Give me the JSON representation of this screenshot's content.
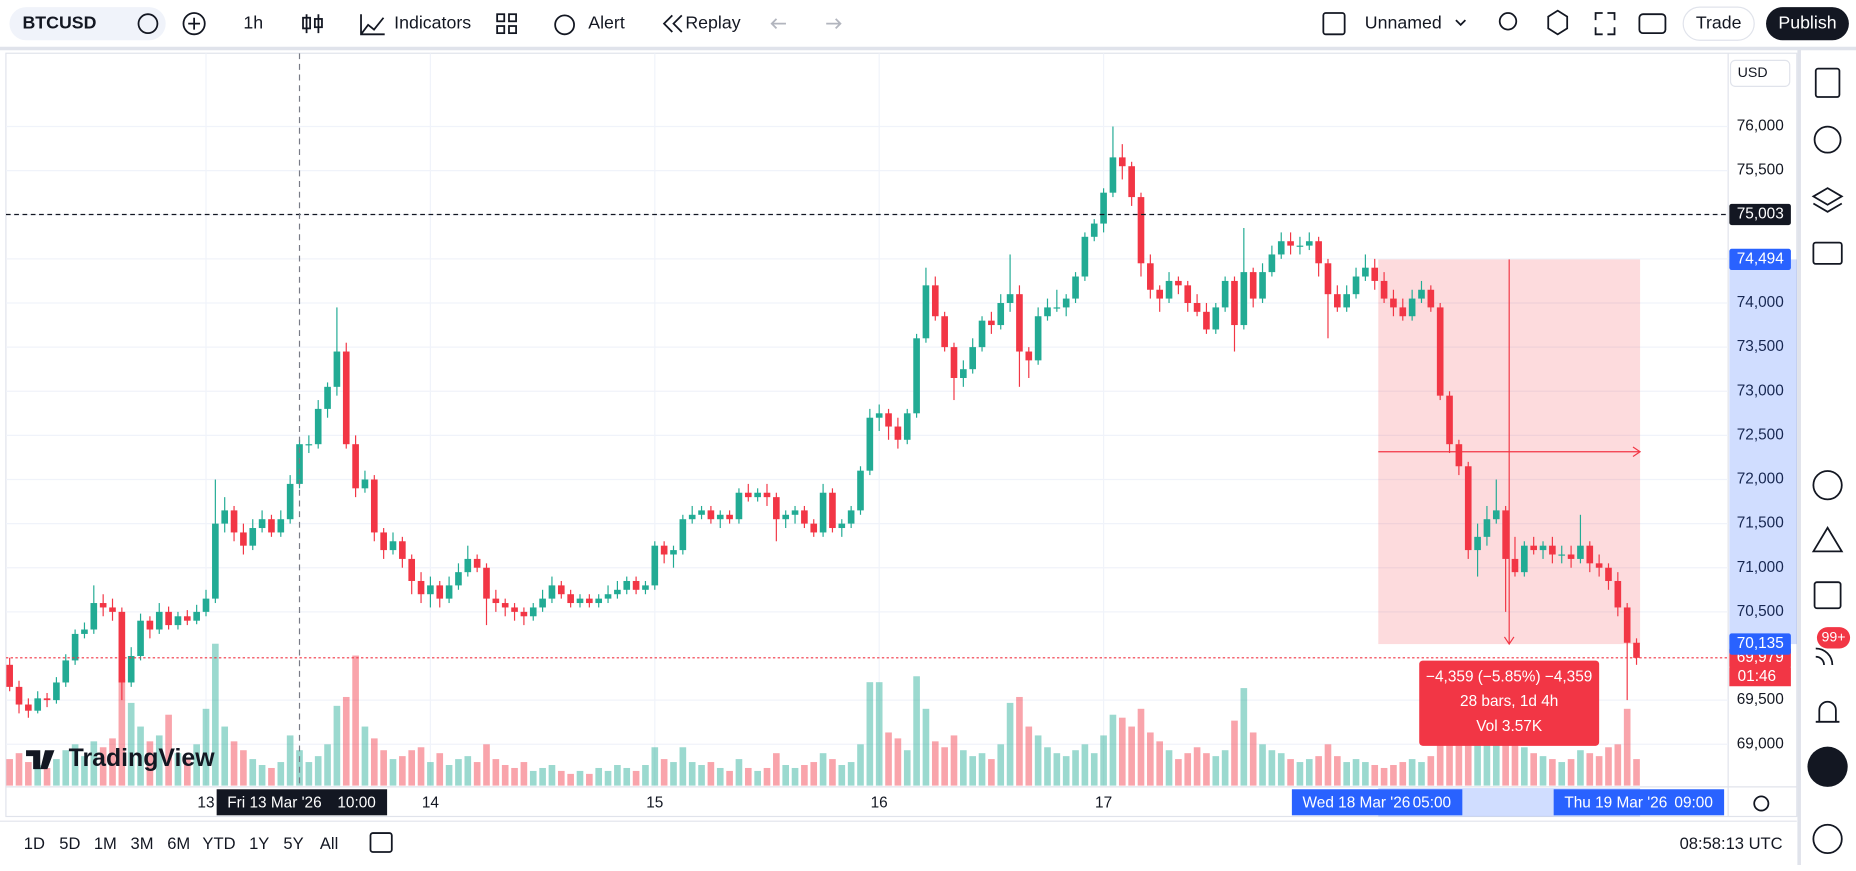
{
  "toolbar": {
    "symbol": "BTCUSD",
    "interval": "1h",
    "indicators": "Indicators",
    "alert": "Alert",
    "replay": "Replay",
    "layout": "Unnamed",
    "trade": "Trade",
    "publish": "Publish"
  },
  "chart_data": {
    "type": "candlestick",
    "candles": [
      [
        69900,
        69980,
        69600,
        69650,
        90
      ],
      [
        69650,
        69720,
        69350,
        69450,
        110
      ],
      [
        69450,
        69520,
        69300,
        69380,
        80
      ],
      [
        69380,
        69600,
        69350,
        69520,
        70
      ],
      [
        69520,
        69580,
        69420,
        69500,
        60
      ],
      [
        69500,
        69760,
        69460,
        69700,
        90
      ],
      [
        69700,
        70020,
        69650,
        69950,
        120
      ],
      [
        69950,
        70300,
        69900,
        70250,
        140
      ],
      [
        70250,
        70380,
        70200,
        70300,
        100
      ],
      [
        70300,
        70800,
        70250,
        70600,
        150
      ],
      [
        70600,
        70700,
        70450,
        70550,
        130
      ],
      [
        70550,
        70650,
        70400,
        70500,
        160
      ],
      [
        70500,
        70550,
        69500,
        69700,
        360
      ],
      [
        69700,
        70100,
        69650,
        70000,
        280
      ],
      [
        70000,
        70480,
        69950,
        70400,
        200
      ],
      [
        70400,
        70450,
        70200,
        70300,
        150
      ],
      [
        70300,
        70600,
        70250,
        70500,
        170
      ],
      [
        70500,
        70560,
        70300,
        70350,
        240
      ],
      [
        70350,
        70500,
        70300,
        70450,
        110
      ],
      [
        70450,
        70520,
        70350,
        70400,
        90
      ],
      [
        70400,
        70580,
        70360,
        70500,
        140
      ],
      [
        70500,
        70750,
        70450,
        70650,
        260
      ],
      [
        70650,
        72000,
        70600,
        71500,
        480
      ],
      [
        71500,
        71800,
        71400,
        71650,
        200
      ],
      [
        71650,
        71700,
        71300,
        71400,
        150
      ],
      [
        71400,
        71500,
        71150,
        71250,
        120
      ],
      [
        71250,
        71550,
        71200,
        71450,
        90
      ],
      [
        71450,
        71650,
        71400,
        71550,
        70
      ],
      [
        71550,
        71600,
        71350,
        71400,
        60
      ],
      [
        71400,
        71650,
        71350,
        71550,
        80
      ],
      [
        71550,
        72050,
        71500,
        71950,
        170
      ],
      [
        71950,
        72450,
        71900,
        72400,
        120
      ],
      [
        72400,
        72500,
        72300,
        72400,
        80
      ],
      [
        72400,
        72900,
        72350,
        72800,
        100
      ],
      [
        72800,
        73100,
        72700,
        73050,
        140
      ],
      [
        73050,
        73950,
        72950,
        73450,
        270
      ],
      [
        73450,
        73550,
        72350,
        72400,
        300
      ],
      [
        72400,
        72500,
        71800,
        71900,
        440
      ],
      [
        71900,
        72100,
        71850,
        72000,
        200
      ],
      [
        72000,
        72050,
        71300,
        71400,
        160
      ],
      [
        71400,
        71450,
        71100,
        71200,
        120
      ],
      [
        71200,
        71400,
        71150,
        71300,
        90
      ],
      [
        71300,
        71350,
        71000,
        71100,
        100
      ],
      [
        71100,
        71150,
        70700,
        70850,
        120
      ],
      [
        70850,
        70950,
        70600,
        70700,
        130
      ],
      [
        70700,
        70900,
        70550,
        70800,
        80
      ],
      [
        70800,
        70850,
        70550,
        70650,
        110
      ],
      [
        70650,
        70900,
        70600,
        70800,
        70
      ],
      [
        70800,
        71050,
        70750,
        70950,
        90
      ],
      [
        70950,
        71250,
        70900,
        71100,
        100
      ],
      [
        71100,
        71150,
        70950,
        71000,
        80
      ],
      [
        71000,
        71050,
        70350,
        70650,
        140
      ],
      [
        70650,
        70750,
        70500,
        70600,
        90
      ],
      [
        70600,
        70650,
        70450,
        70550,
        70
      ],
      [
        70550,
        70600,
        70400,
        70500,
        60
      ],
      [
        70500,
        70550,
        70350,
        70450,
        80
      ],
      [
        70450,
        70600,
        70400,
        70550,
        50
      ],
      [
        70550,
        70750,
        70500,
        70650,
        60
      ],
      [
        70650,
        70900,
        70600,
        70800,
        70
      ],
      [
        70800,
        70850,
        70650,
        70700,
        50
      ],
      [
        70700,
        70750,
        70550,
        70600,
        40
      ],
      [
        70600,
        70700,
        70550,
        70650,
        50
      ],
      [
        70650,
        70700,
        70550,
        70600,
        40
      ],
      [
        70600,
        70700,
        70550,
        70650,
        60
      ],
      [
        70650,
        70800,
        70600,
        70700,
        50
      ],
      [
        70700,
        70850,
        70650,
        70750,
        70
      ],
      [
        70750,
        70900,
        70700,
        70850,
        60
      ],
      [
        70850,
        70900,
        70700,
        70750,
        50
      ],
      [
        70750,
        70850,
        70700,
        70800,
        70
      ],
      [
        70800,
        71300,
        70750,
        71250,
        130
      ],
      [
        71250,
        71300,
        71050,
        71150,
        90
      ],
      [
        71150,
        71250,
        71000,
        71200,
        80
      ],
      [
        71200,
        71600,
        71150,
        71550,
        130
      ],
      [
        71550,
        71700,
        71500,
        71600,
        80
      ],
      [
        71600,
        71700,
        71550,
        71650,
        70
      ],
      [
        71650,
        71700,
        71500,
        71550,
        80
      ],
      [
        71550,
        71650,
        71450,
        71600,
        60
      ],
      [
        71600,
        71650,
        71500,
        71550,
        50
      ],
      [
        71550,
        71900,
        71500,
        71850,
        90
      ],
      [
        71850,
        71950,
        71750,
        71800,
        60
      ],
      [
        71800,
        71900,
        71750,
        71850,
        50
      ],
      [
        71850,
        71950,
        71700,
        71800,
        60
      ],
      [
        71800,
        71850,
        71300,
        71550,
        110
      ],
      [
        71550,
        71650,
        71450,
        71600,
        70
      ],
      [
        71600,
        71700,
        71500,
        71650,
        60
      ],
      [
        71650,
        71700,
        71450,
        71500,
        70
      ],
      [
        71500,
        71550,
        71350,
        71400,
        80
      ],
      [
        71400,
        71950,
        71350,
        71850,
        110
      ],
      [
        71850,
        71900,
        71400,
        71450,
        90
      ],
      [
        71450,
        71550,
        71350,
        71500,
        70
      ],
      [
        71500,
        71700,
        71450,
        71650,
        80
      ],
      [
        71650,
        72150,
        71600,
        72100,
        140
      ],
      [
        72100,
        72800,
        72050,
        72700,
        350
      ],
      [
        72700,
        72850,
        72550,
        72750,
        350
      ],
      [
        72750,
        72800,
        72450,
        72600,
        180
      ],
      [
        72600,
        72700,
        72350,
        72450,
        160
      ],
      [
        72450,
        72800,
        72400,
        72750,
        120
      ],
      [
        72750,
        73650,
        72700,
        73600,
        370
      ],
      [
        73600,
        74400,
        73550,
        74200,
        260
      ],
      [
        74200,
        74300,
        73800,
        73850,
        150
      ],
      [
        73850,
        73900,
        73450,
        73500,
        130
      ],
      [
        73500,
        73550,
        72900,
        73150,
        170
      ],
      [
        73150,
        73350,
        73050,
        73250,
        120
      ],
      [
        73250,
        73600,
        73200,
        73500,
        100
      ],
      [
        73500,
        73850,
        73450,
        73800,
        110
      ],
      [
        73800,
        73900,
        73650,
        73750,
        90
      ],
      [
        73750,
        74100,
        73700,
        74000,
        140
      ],
      [
        74000,
        74550,
        73900,
        74100,
        280
      ],
      [
        74100,
        74200,
        73050,
        73450,
        300
      ],
      [
        73450,
        73500,
        73150,
        73350,
        200
      ],
      [
        73350,
        73950,
        73300,
        73850,
        170
      ],
      [
        73850,
        74050,
        73800,
        73950,
        130
      ],
      [
        73950,
        74150,
        73900,
        73950,
        110
      ],
      [
        73950,
        74100,
        73850,
        74050,
        100
      ],
      [
        74050,
        74350,
        74000,
        74300,
        120
      ],
      [
        74300,
        74800,
        74250,
        74750,
        140
      ],
      [
        74750,
        74950,
        74700,
        74900,
        110
      ],
      [
        74900,
        75300,
        74800,
        75250,
        170
      ],
      [
        75250,
        76000,
        75200,
        75650,
        240
      ],
      [
        75650,
        75800,
        75400,
        75550,
        230
      ],
      [
        75550,
        75600,
        75100,
        75200,
        200
      ],
      [
        75200,
        75250,
        74300,
        74450,
        260
      ],
      [
        74450,
        74550,
        74050,
        74150,
        180
      ],
      [
        74150,
        74200,
        73900,
        74050,
        150
      ],
      [
        74050,
        74350,
        74000,
        74250,
        120
      ],
      [
        74250,
        74300,
        74100,
        74200,
        90
      ],
      [
        74200,
        74250,
        73900,
        74000,
        110
      ],
      [
        74000,
        74100,
        73850,
        73900,
        130
      ],
      [
        73900,
        74000,
        73650,
        73700,
        110
      ],
      [
        73700,
        74000,
        73650,
        73950,
        100
      ],
      [
        73950,
        74300,
        73900,
        74250,
        120
      ],
      [
        74250,
        74300,
        73450,
        73750,
        220
      ],
      [
        73750,
        74850,
        73700,
        74350,
        330
      ],
      [
        74350,
        74400,
        73950,
        74050,
        180
      ],
      [
        74050,
        74450,
        74000,
        74350,
        140
      ],
      [
        74350,
        74650,
        74300,
        74550,
        120
      ],
      [
        74550,
        74800,
        74500,
        74700,
        110
      ],
      [
        74700,
        74800,
        74550,
        74650,
        90
      ],
      [
        74650,
        74750,
        74550,
        74650,
        80
      ],
      [
        74650,
        74800,
        74600,
        74700,
        90
      ],
      [
        74700,
        74750,
        74300,
        74450,
        100
      ],
      [
        74450,
        74500,
        73600,
        74100,
        140
      ],
      [
        74100,
        74200,
        73900,
        73950,
        100
      ],
      [
        73950,
        74200,
        73900,
        74100,
        80
      ],
      [
        74100,
        74400,
        74050,
        74300,
        90
      ],
      [
        74300,
        74550,
        74250,
        74400,
        80
      ],
      [
        74400,
        74500,
        74150,
        74250,
        70
      ],
      [
        74250,
        74350,
        74000,
        74050,
        60
      ],
      [
        74050,
        74150,
        73850,
        73950,
        70
      ],
      [
        73950,
        74050,
        73800,
        73850,
        80
      ],
      [
        73850,
        74150,
        73800,
        74050,
        90
      ],
      [
        74050,
        74250,
        74000,
        74150,
        80
      ],
      [
        74150,
        74200,
        73900,
        73950,
        100
      ],
      [
        73950,
        74000,
        72900,
        72950,
        160
      ],
      [
        72950,
        73000,
        72300,
        72400,
        200
      ],
      [
        72400,
        72450,
        72050,
        72150,
        170
      ],
      [
        72150,
        72200,
        71100,
        71200,
        350
      ],
      [
        71200,
        71500,
        70900,
        71350,
        260
      ],
      [
        71350,
        71700,
        71250,
        71550,
        190
      ],
      [
        71550,
        72000,
        71500,
        71650,
        170
      ],
      [
        71650,
        71700,
        70500,
        71100,
        300
      ],
      [
        71100,
        71350,
        70900,
        70950,
        160
      ],
      [
        70950,
        71300,
        70900,
        71250,
        130
      ],
      [
        71250,
        71350,
        71150,
        71200,
        110
      ],
      [
        71200,
        71300,
        71100,
        71250,
        100
      ],
      [
        71250,
        71350,
        71050,
        71150,
        90
      ],
      [
        71150,
        71250,
        71050,
        71150,
        80
      ],
      [
        71150,
        71250,
        71000,
        71100,
        90
      ],
      [
        71100,
        71600,
        71050,
        71250,
        120
      ],
      [
        71250,
        71300,
        70950,
        71050,
        110
      ],
      [
        71050,
        71150,
        70900,
        71000,
        100
      ],
      [
        71000,
        71050,
        70750,
        70850,
        130
      ],
      [
        70850,
        70950,
        70450,
        70550,
        140
      ],
      [
        70550,
        70600,
        69500,
        70150,
        260
      ],
      [
        70150,
        70200,
        69900,
        69979,
        90
      ]
    ],
    "colors": {
      "up": "#22ab94",
      "down": "#f23645"
    },
    "currency": "USD",
    "xlim": [
      -0.4,
      183.8
    ],
    "ylim": [
      68530,
      76830
    ],
    "yticks": [
      {
        "value": 69000,
        "label": "69,000"
      },
      {
        "value": 69500,
        "label": "69,500"
      },
      {
        "value": 70500,
        "label": "70,500"
      },
      {
        "value": 71000,
        "label": "71,000"
      },
      {
        "value": 71500,
        "label": "71,500"
      },
      {
        "value": 72000,
        "label": "72,000"
      },
      {
        "value": 72500,
        "label": "72,500"
      },
      {
        "value": 73000,
        "label": "73,000"
      },
      {
        "value": 73500,
        "label": "73,500"
      },
      {
        "value": 74000,
        "label": "74,000"
      },
      {
        "value": 74500,
        "label": "74,500"
      },
      {
        "value": 75000,
        "label": "75,000"
      },
      {
        "value": 75500,
        "label": "75,500"
      },
      {
        "value": 76000,
        "label": "76,000"
      }
    ],
    "xticks": [
      {
        "value": 21,
        "label": "13"
      },
      {
        "value": 45,
        "label": "14"
      },
      {
        "value": 69,
        "label": "15"
      },
      {
        "value": 93,
        "label": "16"
      },
      {
        "value": 117,
        "label": "17"
      }
    ],
    "grid": true,
    "price_lines": {
      "level": {
        "value": 75003,
        "label": "75,003"
      },
      "last": {
        "value": 69979,
        "label": "69,979"
      },
      "countdown": "01:46"
    },
    "crosshair": {
      "x": 31,
      "date": "Fri 13 Mar '26",
      "time": "10:00"
    },
    "measure": {
      "from": {
        "x": 146,
        "price": {
          "value": 74494,
          "label": "74,494"
        },
        "date": "Wed 18 Mar '26",
        "time": "05:00"
      },
      "to": {
        "x": 174,
        "price": {
          "value": 70135,
          "label": "70,135"
        },
        "date": "Thu 19 Mar '26",
        "time": "09:00"
      },
      "lines": [
        "−4,359 (−5.85%) −4,359",
        "28 bars, 1d 4h",
        "Vol 3.57K"
      ]
    }
  },
  "logo": "TradingView",
  "ranges": [
    "1D",
    "5D",
    "1M",
    "3M",
    "6M",
    "YTD",
    "1Y",
    "5Y",
    "All"
  ],
  "clock": "08:58:13 UTC",
  "notifications": "99+"
}
